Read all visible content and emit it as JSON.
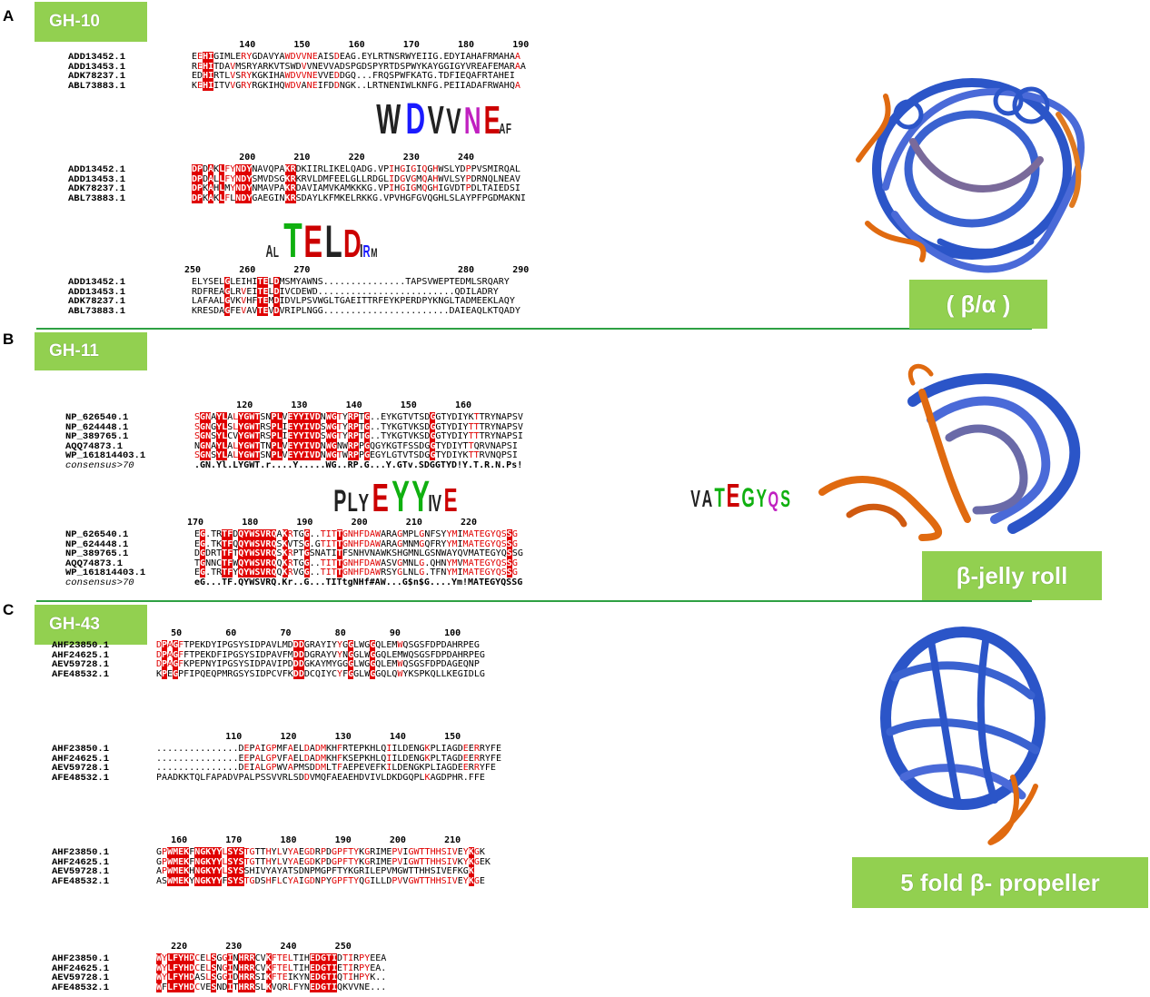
{
  "panels": [
    {
      "letter": "A",
      "gh_label": "GH-10",
      "structure_label": "( β/α )",
      "blocks": [
        {
          "ruler": [
            {
              "n": "140",
              "c": 11
            },
            {
              "n": "150",
              "c": 21
            },
            {
              "n": "160",
              "c": 31
            },
            {
              "n": "170",
              "c": 41
            },
            {
              "n": "180",
              "c": 51
            },
            {
              "n": "190",
              "c": 61
            }
          ],
          "rows": [
            {
              "name": "ADD13452.1",
              "seq": "EEHIGIMLERYGDAVYAWDVVNEAISDEAG.EYLRTNSRWYEIIG.EDYIAHAFRMAHAA"
            },
            {
              "name": "ADD13453.1",
              "seq": "REHITDAVMSRYARKVTSWDVVNEVVADSPGDSPYRTDSPWYKAYGGIGYVREAFEMARAA"
            },
            {
              "name": "ADK78237.1",
              "seq": "EDHIRTLVSRYKGKIHAWDVVNEVVEDDGQ...FRQSPWFKATG.TDFIEQAFRTAHEI"
            },
            {
              "name": "ABL73883.1",
              "seq": "KEHIITVVGRYRGKIHQWDVANEIFDDNGK..LRTNENIWLKNFG.PEIIADAFRWAHQA"
            }
          ],
          "consensus": null
        },
        {
          "ruler": [
            {
              "n": "200",
              "c": 11
            },
            {
              "n": "210",
              "c": 21
            },
            {
              "n": "220",
              "c": 31
            },
            {
              "n": "230",
              "c": 41
            },
            {
              "n": "240",
              "c": 51
            }
          ],
          "rows": [
            {
              "name": "ADD13452.1",
              "seq": "DPDAKLFYNDYNAVQPAKRDKIIRLIKELQADG.VPIHGIGIQGHWSLYDPPVSMIRQAL"
            },
            {
              "name": "ADD13453.1",
              "seq": "DPDALLFYNDYSMVDSGKRKRVLDMFEELGLLRDGLIDGVGMQAHWVLSYPDRNQLNEAV"
            },
            {
              "name": "ADK78237.1",
              "seq": "DPKAHLMYNDYNMAVPAKRDAVIAMVKAMKKKG.VPIHGIGMQGHIGVDTPDLTAIEDSI"
            },
            {
              "name": "ABL73883.1",
              "seq": "DPKAKLFLNDYGAEGINKRSDAYLKFMKELRKKG.VPVHGFGVQGHLSLAYPFPGDMAKNI"
            }
          ],
          "consensus": null
        },
        {
          "ruler": [
            {
              "n": "250",
              "c": 1
            },
            {
              "n": "260",
              "c": 11
            },
            {
              "n": "270",
              "c": 21
            },
            {
              "n": "280",
              "c": 51
            },
            {
              "n": "290",
              "c": 61
            }
          ],
          "rows": [
            {
              "name": "ADD13452.1",
              "seq": "ELYSELGLEIHITELDMSMYAWNS...............TAPSVWEPTEDMLSRQARY"
            },
            {
              "name": "ADD13453.1",
              "seq": "RDFREAGLRVEITELDIVCDEWD.........................QDILADRY"
            },
            {
              "name": "ADK78237.1",
              "seq": "LAFAALGVKVHFTEMDIDVLPSVWGLTGAEITTRFEYKPERDPYKNGLTADMEEKLAQY"
            },
            {
              "name": "ABL73883.1",
              "seq": "KRESDAGFEVAVTEVDVRIPLNGG.......................DAIEAQLKTQADY"
            }
          ],
          "consensus": null
        }
      ],
      "logos": [
        {
          "letters": [
            {
              "c": "W",
              "col": "#222222"
            },
            {
              "c": "D",
              "col": "#1a1aff"
            },
            {
              "c": "V",
              "col": "#222222"
            },
            {
              "c": "V",
              "col": "#222222"
            },
            {
              "c": "N",
              "col": "#c020c0"
            },
            {
              "c": "E",
              "col": "#cc0000"
            },
            {
              "c": "A",
              "col": "#222222"
            },
            {
              "c": "F",
              "col": "#222222"
            }
          ]
        },
        {
          "letters": [
            {
              "c": "A",
              "col": "#222222"
            },
            {
              "c": "L",
              "col": "#222222"
            },
            {
              "c": "T",
              "col": "#10b010"
            },
            {
              "c": "E",
              "col": "#cc0000"
            },
            {
              "c": "L",
              "col": "#222222"
            },
            {
              "c": "D",
              "col": "#cc0000"
            },
            {
              "c": "I",
              "col": "#222222"
            },
            {
              "c": "R",
              "col": "#1a1aff"
            },
            {
              "c": "M",
              "col": "#222222"
            }
          ]
        }
      ]
    },
    {
      "letter": "B",
      "gh_label": "GH-11",
      "structure_label": "β-jelly roll",
      "blocks": [
        {
          "ruler": [
            {
              "n": "120",
              "c": 10
            },
            {
              "n": "130",
              "c": 20
            },
            {
              "n": "140",
              "c": 30
            },
            {
              "n": "150",
              "c": 40
            },
            {
              "n": "160",
              "c": 50
            }
          ],
          "rows": [
            {
              "name": "NP_626540.1",
              "seq": "SGNAYLALYGWTSNPLVEYYIVDNWGTYRPTG..EYKGTVTSDGGTYDIYKTTRYNAPSV"
            },
            {
              "name": "NP_624448.1",
              "seq": "SGNGYLSLYGWTRSPLIEYYIVDSWGTYRPTG..TYKGTVKSDGGTYDIYTTTRYNAPSV"
            },
            {
              "name": "NP_389765.1",
              "seq": "SGNSYLCVYGWTRSPLIEYYIVDSWGTYRPTG..TYKGTVKSDGGTYDIYTTTRYNAPSI"
            },
            {
              "name": "AQQ74873.1",
              "seq": "NGNAYLALYGWTTNPLVEYYIVDNWGNWRPPGQGYKGTFSSDGGTYDIYTTQRVNAPSI"
            },
            {
              "name": "WP_161814403.1",
              "seq": "SGNSYLALYGWTSNPLVEYYIVDNWGTWRPPGEGYLGTVTSDGGTYDIYKTTRVNQPSI"
            }
          ],
          "consensus": {
            "name": "consensus>70",
            "seq": ".GN.Yl.LYGWT.r....Y.....WG..RP.G...Y.GTv.SDGGTYD!Y.T.R.N.Ps!"
          }
        },
        {
          "ruler": [
            {
              "n": "170",
              "c": 1
            },
            {
              "n": "180",
              "c": 11
            },
            {
              "n": "190",
              "c": 21
            },
            {
              "n": "200",
              "c": 31
            },
            {
              "n": "210",
              "c": 41
            },
            {
              "n": "220",
              "c": 51
            }
          ],
          "rows": [
            {
              "name": "NP_626540.1",
              "seq": "EG.TRTFDQYWSVRQAKRTGG..TITTGNHFDAWARAGMPLGNFSYYMIMATEGYQSSG"
            },
            {
              "name": "NP_624448.1",
              "seq": "EG.TKTFQQYWSVRQSKVTSG.GTITTGNHFDAWARAGMNMGQFRYYMIMATEGYQSSG"
            },
            {
              "name": "NP_389765.1",
              "seq": "DGDRTTFTQYWSVRQSKRPTGSNATITFSNHVNAWKSHGMNLGSNWAYQVMATEGYQSSG"
            },
            {
              "name": "AQQ74873.1",
              "seq": "TGNNCTFWQYWSVRQQKRTGG..TITTGNHFDAWASVGMNLG.QHNYMVMATEGYQSSG"
            },
            {
              "name": "WP_161814403.1",
              "seq": "EG.TRTFYQYWSVRQQKRVGG..TITTGNHFDAWRSYGLNLG.TFNYMIMATEGYQSSG"
            }
          ],
          "consensus": {
            "name": "consensus>70",
            "seq": "eG...TF.QYWSVRQ.Kr..G...TITtgNHf#AW...G$n$G....Ym!MATEGYQSSG"
          }
        }
      ],
      "logos": [
        {
          "letters": [
            {
              "c": "P",
              "col": "#222222"
            },
            {
              "c": "L",
              "col": "#222222"
            },
            {
              "c": "Y",
              "col": "#222222"
            },
            {
              "c": "E",
              "col": "#cc0000"
            },
            {
              "c": "Y",
              "col": "#10b010"
            },
            {
              "c": "Y",
              "col": "#10b010"
            },
            {
              "c": "I",
              "col": "#222222"
            },
            {
              "c": "V",
              "col": "#222222"
            },
            {
              "c": "E",
              "col": "#cc0000"
            }
          ]
        },
        {
          "letters": [
            {
              "c": "V",
              "col": "#222222"
            },
            {
              "c": "A",
              "col": "#222222"
            },
            {
              "c": "T",
              "col": "#10b010"
            },
            {
              "c": "E",
              "col": "#cc0000"
            },
            {
              "c": "G",
              "col": "#10b010"
            },
            {
              "c": "Y",
              "col": "#10b010"
            },
            {
              "c": "Q",
              "col": "#c020c0"
            },
            {
              "c": "S",
              "col": "#10b010"
            }
          ]
        }
      ]
    },
    {
      "letter": "C",
      "gh_label": "GH-43",
      "structure_label": "5 fold β- propeller",
      "blocks": [
        {
          "ruler": [
            {
              "n": "50",
              "c": 5
            },
            {
              "n": "60",
              "c": 15
            },
            {
              "n": "70",
              "c": 25
            },
            {
              "n": "80",
              "c": 35
            },
            {
              "n": "90",
              "c": 45
            },
            {
              "n": "100",
              "c": 55
            }
          ],
          "rows": [
            {
              "name": "AHF23850.1",
              "seq": "DPAGFTPEKDYIPGSYSIDPAVLMDDDGRAYIYYGGLWGGQLEMWQSGSFDPDAHRPEG"
            },
            {
              "name": "AHF24625.1",
              "seq": "DPAGFFTPEKDFIPGSYSIDPAVFMDDDGRAYVYNGGLWGGQLEMWQSGSFDPDAHRPEG"
            },
            {
              "name": "AEV59728.1",
              "seq": "DPAGFKPEPNYIPGSYSIDPAVIPDDDGKAYMYGGGLWGGQLEMWQSGSFDPDAGEQNP"
            },
            {
              "name": "AFE48532.1",
              "seq": "KPEGPFIPQEQPMRGSYSIDPCVFKDDDCQIYCYFGGLWGGQLQWYKSPKQLLKEGIDLG"
            }
          ],
          "consensus": null
        },
        {
          "ruler": [
            {
              "n": "110",
              "c": 15
            },
            {
              "n": "120",
              "c": 25
            },
            {
              "n": "130",
              "c": 35
            },
            {
              "n": "140",
              "c": 45
            },
            {
              "n": "150",
              "c": 55
            }
          ],
          "rows": [
            {
              "name": "AHF23850.1",
              "seq": "...............DEPAIGPMFAELDADMKHFRTEPKHLQIILDENGKPLIAGDEERRYFE"
            },
            {
              "name": "AHF24625.1",
              "seq": "...............EEPALGPVFAELDADMKHFKSEPKHLQIILDENGKPLTAGDEERRYFE"
            },
            {
              "name": "AEV59728.1",
              "seq": "...............DEIALGPWVAPMSDDMLTFAEPEVEFKILDENGKPLIAGDEERRYFE"
            },
            {
              "name": "AFE48532.1",
              "seq": "PAADKKTQLFAPADVPALPSSVVRLSDDVMQFAEAEHDVIVLDKDGQPLKAGDPHR.FFE"
            }
          ],
          "consensus": null
        },
        {
          "ruler": [
            {
              "n": "160",
              "c": 5
            },
            {
              "n": "170",
              "c": 15
            },
            {
              "n": "180",
              "c": 25
            },
            {
              "n": "190",
              "c": 35
            },
            {
              "n": "200",
              "c": 45
            },
            {
              "n": "210",
              "c": 55
            }
          ],
          "rows": [
            {
              "name": "AHF23850.1",
              "seq": "GPWMEKFNGKYYLSYSTGTTHYLVYAEGDRPDGPFTYKGRIMEPVIGWTTHHSIVEYKGK"
            },
            {
              "name": "AHF24625.1",
              "seq": "GPWMEKFNGKYYLSYSTGTTHYLVYAEGDKPDGPFTYKGRIMEPVIGWTTHHSIVKYKGEK"
            },
            {
              "name": "AEV59728.1",
              "seq": "APWMEKHNGKYYLSYSSHIVYAYATSDNPMGPFTYKGRILEPVMGWTTHHSIVEFKGK"
            },
            {
              "name": "AFE48532.1",
              "seq": "ASWMEKYNGKYYFSYSTGDSHFLCYAIGDNPYGPFTYQGILLDPVVGWTTHHSIVEYKGE"
            }
          ],
          "consensus": null
        },
        {
          "ruler": [
            {
              "n": "220",
              "c": 5
            },
            {
              "n": "230",
              "c": 15
            },
            {
              "n": "240",
              "c": 25
            },
            {
              "n": "250",
              "c": 35
            }
          ],
          "rows": [
            {
              "name": "AHF23850.1",
              "seq": "WYLFYHDCELSGGINHRRCVKFTELTIHEDGTIDTIRPYEEA"
            },
            {
              "name": "AHF24625.1",
              "seq": "WYLFYHDCELSNGINHRRCVKFTELTIHEDGTIETIRPYEA."
            },
            {
              "name": "AEV59728.1",
              "seq": "WYLFYHDASLSGGIDHRRSIKFTEIKYNEDGTIQTIHPYK.."
            },
            {
              "name": "AFE48532.1",
              "seq": "WFLFYHDCVESNDITHRRSLKVQRLFYNEDGTIQKVVNE..."
            }
          ],
          "consensus": null
        }
      ],
      "logos": []
    }
  ],
  "palette": {
    "conserved_bg": "#e00000",
    "conserved_fg": "#ffffff",
    "similar_fg": "#e00000",
    "box_border": "#7070d0",
    "label_green": "#92d050",
    "divider_green": "#2ea043"
  }
}
